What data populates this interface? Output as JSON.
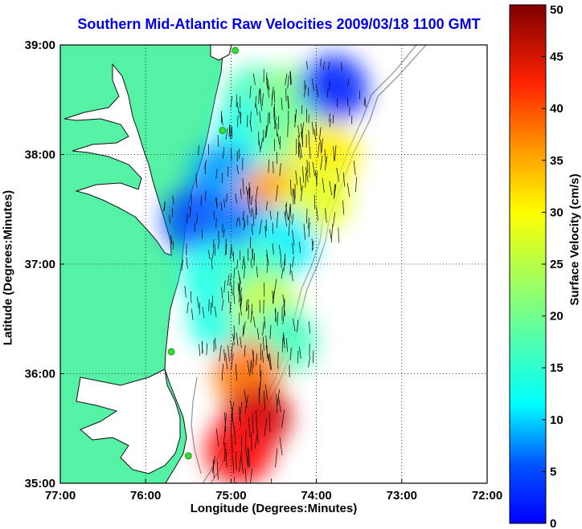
{
  "title": "Southern Mid-Atlantic Raw Velocities 2009/03/18 1100 GMT",
  "xlabel": "Longitude (Degrees:Minutes)",
  "ylabel": "Latitude (Degrees:Minutes)",
  "colorbar_label": "Surface Velocity (cm/s)",
  "x_ticks": [
    "77:00",
    "76:00",
    "75:00",
    "74:00",
    "73:00",
    "72:00"
  ],
  "y_ticks": [
    "39:00",
    "38:00",
    "37:00",
    "36:00",
    "35:00"
  ],
  "colorbar_ticks": [
    "0",
    "5",
    "10",
    "15",
    "20",
    "25",
    "30",
    "35",
    "40",
    "45",
    "50"
  ],
  "colors": {
    "title": "#0000e6",
    "land": "#55f2a6",
    "water": "#ffffff",
    "coast_line": "#111111",
    "bathymetry": "#9a9a9a",
    "site_marker": "#33dd33",
    "arrow": "#000000"
  },
  "chart_data": {
    "type": "heatmap",
    "title": "Southern Mid-Atlantic Raw Velocities 2009/03/18 1100 GMT",
    "xlabel": "Longitude (Degrees:Minutes)",
    "ylabel": "Latitude (Degrees:Minutes)",
    "xlim": [
      -77,
      -72
    ],
    "ylim": [
      35,
      39
    ],
    "grid": true,
    "colorbar": {
      "label": "Surface Velocity (cm/s)",
      "range": [
        0,
        50
      ],
      "colormap": "jet"
    },
    "velocity_field": [
      {
        "lon": -74.7,
        "lat": 38.5,
        "speed": 22
      },
      {
        "lon": -74.3,
        "lat": 38.5,
        "speed": 25
      },
      {
        "lon": -73.8,
        "lat": 38.6,
        "speed": 8
      },
      {
        "lon": -74.8,
        "lat": 38.2,
        "speed": 20
      },
      {
        "lon": -74.3,
        "lat": 38.2,
        "speed": 24
      },
      {
        "lon": -73.9,
        "lat": 38.0,
        "speed": 32
      },
      {
        "lon": -75.1,
        "lat": 37.8,
        "speed": 14
      },
      {
        "lon": -74.5,
        "lat": 37.6,
        "speed": 36
      },
      {
        "lon": -74.0,
        "lat": 37.6,
        "speed": 30
      },
      {
        "lon": -75.4,
        "lat": 37.4,
        "speed": 10
      },
      {
        "lon": -74.9,
        "lat": 37.3,
        "speed": 12
      },
      {
        "lon": -74.4,
        "lat": 37.2,
        "speed": 18
      },
      {
        "lon": -75.2,
        "lat": 36.9,
        "speed": 20
      },
      {
        "lon": -74.7,
        "lat": 36.9,
        "speed": 22
      },
      {
        "lon": -75.1,
        "lat": 36.5,
        "speed": 20
      },
      {
        "lon": -74.6,
        "lat": 36.6,
        "speed": 28
      },
      {
        "lon": -74.4,
        "lat": 36.3,
        "speed": 22
      },
      {
        "lon": -74.8,
        "lat": 36.0,
        "speed": 38
      },
      {
        "lon": -74.7,
        "lat": 35.6,
        "speed": 46
      },
      {
        "lon": -74.9,
        "lat": 35.3,
        "speed": 44
      }
    ],
    "hf_radar_sites": [
      {
        "lon": -74.95,
        "lat": 38.95
      },
      {
        "lon": -75.1,
        "lat": 38.22
      },
      {
        "lon": -75.7,
        "lat": 36.2
      },
      {
        "lon": -75.5,
        "lat": 35.25
      }
    ]
  }
}
